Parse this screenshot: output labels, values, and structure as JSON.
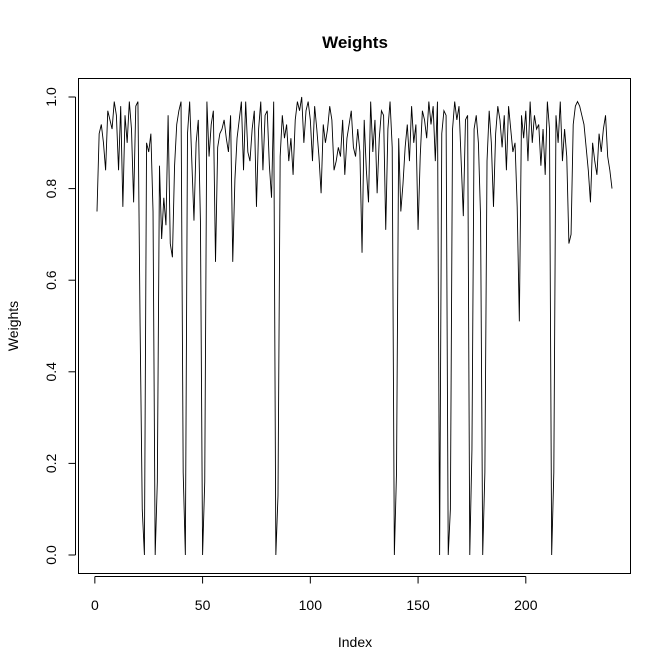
{
  "chart_data": {
    "type": "line",
    "title": "Weights",
    "xlabel": "Index",
    "ylabel": "Weights",
    "xlim": [
      1,
      240
    ],
    "ylim": [
      0.0,
      1.0
    ],
    "x_ticks": [
      0,
      50,
      100,
      150,
      200
    ],
    "x_tick_labels": [
      "0",
      "50",
      "100",
      "150",
      "200"
    ],
    "y_ticks": [
      0.0,
      0.2,
      0.4,
      0.6,
      0.8,
      1.0
    ],
    "y_tick_labels": [
      "0.0",
      "0.2",
      "0.4",
      "0.6",
      "0.8",
      "1.0"
    ],
    "grid": false,
    "legend": "none",
    "series": [
      {
        "color": "#000000",
        "values": [
          0.75,
          0.92,
          0.94,
          0.9,
          0.84,
          0.97,
          0.95,
          0.93,
          0.99,
          0.96,
          0.84,
          0.98,
          0.76,
          0.96,
          0.9,
          0.99,
          0.93,
          0.77,
          0.98,
          0.99,
          0.5,
          0.1,
          0.0,
          0.9,
          0.88,
          0.92,
          0.75,
          0.0,
          0.16,
          0.85,
          0.69,
          0.78,
          0.72,
          0.96,
          0.68,
          0.65,
          0.85,
          0.94,
          0.97,
          0.99,
          0.18,
          0.0,
          0.92,
          0.99,
          0.86,
          0.73,
          0.9,
          0.95,
          0.73,
          0.0,
          0.16,
          0.99,
          0.87,
          0.94,
          0.97,
          0.64,
          0.89,
          0.92,
          0.93,
          0.95,
          0.91,
          0.88,
          0.96,
          0.64,
          0.82,
          0.91,
          0.95,
          0.99,
          0.84,
          0.99,
          0.88,
          0.86,
          0.93,
          0.97,
          0.76,
          0.93,
          0.99,
          0.84,
          0.96,
          0.97,
          0.85,
          0.78,
          0.99,
          0.0,
          0.13,
          0.87,
          0.96,
          0.91,
          0.94,
          0.86,
          0.91,
          0.83,
          0.95,
          0.99,
          0.97,
          1.0,
          0.9,
          0.97,
          0.99,
          0.95,
          0.86,
          0.98,
          0.93,
          0.87,
          0.79,
          0.94,
          0.9,
          0.93,
          0.98,
          0.95,
          0.84,
          0.86,
          0.89,
          0.87,
          0.95,
          0.83,
          0.91,
          0.94,
          0.97,
          0.89,
          0.87,
          0.93,
          0.88,
          0.66,
          0.95,
          0.84,
          0.77,
          0.99,
          0.88,
          0.95,
          0.79,
          0.91,
          0.97,
          0.96,
          0.71,
          0.93,
          0.99,
          0.89,
          0.0,
          0.18,
          0.91,
          0.75,
          0.81,
          0.89,
          0.94,
          0.86,
          0.98,
          0.9,
          0.94,
          0.71,
          0.87,
          0.97,
          0.95,
          0.91,
          0.99,
          0.94,
          0.98,
          0.86,
          0.99,
          0.0,
          0.92,
          0.97,
          0.96,
          0.0,
          0.1,
          0.93,
          0.99,
          0.95,
          0.98,
          0.86,
          0.74,
          0.95,
          0.96,
          0.0,
          0.23,
          0.93,
          0.96,
          0.9,
          0.74,
          0.0,
          0.18,
          0.86,
          0.97,
          0.9,
          0.76,
          0.92,
          0.98,
          0.95,
          0.89,
          0.96,
          0.84,
          0.98,
          0.93,
          0.88,
          0.9,
          0.76,
          0.51,
          0.96,
          0.91,
          0.97,
          0.86,
          0.99,
          0.9,
          0.96,
          0.93,
          0.94,
          0.85,
          0.93,
          0.83,
          0.99,
          0.93,
          0.0,
          0.18,
          0.96,
          0.9,
          0.99,
          0.86,
          0.93,
          0.87,
          0.68,
          0.7,
          0.94,
          0.98,
          0.99,
          0.98,
          0.96,
          0.94,
          0.89,
          0.84,
          0.77,
          0.9,
          0.86,
          0.83,
          0.92,
          0.88,
          0.93,
          0.96,
          0.87,
          0.84,
          0.8
        ]
      }
    ]
  }
}
